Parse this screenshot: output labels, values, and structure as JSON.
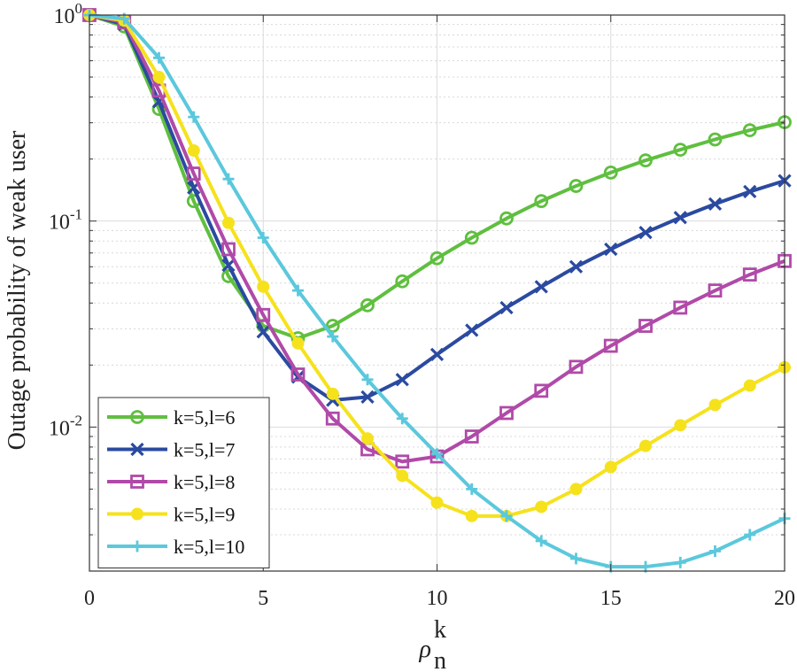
{
  "chart_data": {
    "type": "line",
    "title": "",
    "xlabel": "ρ",
    "xlabel_sub": "n",
    "xlabel_sup": "k",
    "ylabel": "Outage probability of weak user",
    "xlim": [
      0,
      20
    ],
    "ylim": [
      0.002,
      1
    ],
    "yscale": "log",
    "grid": true,
    "x_ticks": [
      0,
      5,
      10,
      15,
      20
    ],
    "x_tick_labels": [
      "0",
      "5",
      "10",
      "15",
      "20"
    ],
    "y_tick_labels": [
      {
        "base": "10",
        "exp": "0"
      },
      {
        "base": "10",
        "exp": "-1"
      },
      {
        "base": "10",
        "exp": "-2"
      }
    ],
    "legend_position": "bottom-left",
    "x": [
      0,
      1,
      2,
      3,
      4,
      5,
      6,
      7,
      8,
      9,
      10,
      11,
      12,
      13,
      14,
      15,
      16,
      17,
      18,
      19,
      20
    ],
    "series": [
      {
        "name": "k=5,l=6",
        "color": "#5fbf3f",
        "marker": "circle",
        "values": [
          1,
          0.88,
          0.35,
          0.125,
          0.054,
          0.031,
          0.027,
          0.031,
          0.039,
          0.051,
          0.066,
          0.083,
          0.103,
          0.125,
          0.148,
          0.172,
          0.197,
          0.222,
          0.249,
          0.276,
          0.302
        ]
      },
      {
        "name": "k=5,l=7",
        "color": "#2b4aa0",
        "marker": "x",
        "values": [
          1,
          0.9,
          0.38,
          0.145,
          0.061,
          0.029,
          0.0175,
          0.0135,
          0.014,
          0.017,
          0.0225,
          0.0295,
          0.038,
          0.048,
          0.06,
          0.073,
          0.088,
          0.104,
          0.121,
          0.139,
          0.157
        ]
      },
      {
        "name": "k=5,l=8",
        "color": "#b04aa8",
        "marker": "square",
        "values": [
          1,
          0.92,
          0.43,
          0.17,
          0.073,
          0.035,
          0.018,
          0.011,
          0.0078,
          0.0068,
          0.0072,
          0.009,
          0.0117,
          0.015,
          0.0196,
          0.0248,
          0.031,
          0.038,
          0.046,
          0.055,
          0.064
        ]
      },
      {
        "name": "k=5,l=9",
        "color": "#f5e21c",
        "marker": "filled-circle",
        "values": [
          1,
          0.94,
          0.5,
          0.22,
          0.098,
          0.048,
          0.0255,
          0.0145,
          0.0088,
          0.0058,
          0.0043,
          0.0037,
          0.0037,
          0.0041,
          0.005,
          0.0064,
          0.0081,
          0.0102,
          0.0128,
          0.0159,
          0.0195
        ]
      },
      {
        "name": "k=5,l=10",
        "color": "#5bc8dc",
        "marker": "plus",
        "values": [
          1,
          0.96,
          0.62,
          0.32,
          0.16,
          0.083,
          0.046,
          0.0275,
          0.017,
          0.011,
          0.0074,
          0.005,
          0.0037,
          0.0028,
          0.0023,
          0.0021,
          0.0021,
          0.0022,
          0.0025,
          0.003,
          0.0036
        ]
      }
    ]
  }
}
